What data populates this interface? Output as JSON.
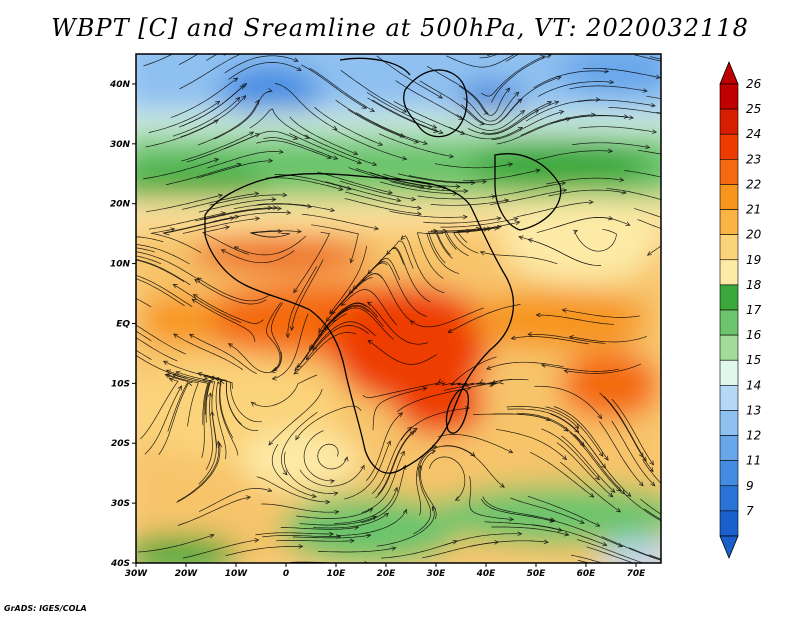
{
  "title": "WBPT [C] and Sreamline at 500hPa, VT: 2020032118",
  "credit": "GrADS: IGES/COLA",
  "map": {
    "lon_range": [
      -30,
      75
    ],
    "lat_range": [
      -40,
      45
    ],
    "x_ticks": [
      {
        "value": -30,
        "label": "30W"
      },
      {
        "value": -20,
        "label": "20W"
      },
      {
        "value": -10,
        "label": "10W"
      },
      {
        "value": 0,
        "label": "0"
      },
      {
        "value": 10,
        "label": "10E"
      },
      {
        "value": 20,
        "label": "20E"
      },
      {
        "value": 30,
        "label": "30E"
      },
      {
        "value": 40,
        "label": "40E"
      },
      {
        "value": 50,
        "label": "50E"
      },
      {
        "value": 60,
        "label": "60E"
      },
      {
        "value": 70,
        "label": "70E"
      }
    ],
    "y_ticks": [
      {
        "value": 40,
        "label": "40N"
      },
      {
        "value": 30,
        "label": "30N"
      },
      {
        "value": 20,
        "label": "20N"
      },
      {
        "value": 10,
        "label": "10N"
      },
      {
        "value": 0,
        "label": "EQ"
      },
      {
        "value": -10,
        "label": "10S"
      },
      {
        "value": -20,
        "label": "20S"
      },
      {
        "value": -30,
        "label": "30S"
      },
      {
        "value": -40,
        "label": "40S"
      }
    ]
  },
  "colorbar": {
    "levels": [
      "26",
      "25",
      "24",
      "23",
      "22",
      "21",
      "20",
      "19",
      "18",
      "17",
      "16",
      "15",
      "14",
      "13",
      "12",
      "11",
      "9",
      "7"
    ],
    "colors": [
      "#c00000",
      "#d81e00",
      "#ee3c00",
      "#f46a10",
      "#f7951c",
      "#f9b445",
      "#fbd37a",
      "#fdeaa6",
      "#3aa83a",
      "#6cc46c",
      "#a2dc9a",
      "#e0f7ee",
      "#b4d8f6",
      "#8ec0f0",
      "#68a6ea",
      "#448ce2",
      "#2a74d8",
      "#1a60cc"
    ]
  },
  "chart_data": {
    "type": "heatmap",
    "title": "WBPT [C] and Sreamline at 500hPa, VT: 2020032118",
    "x_range": [
      -30,
      75
    ],
    "y_range": [
      -40,
      45
    ],
    "field_regions": [
      {
        "region": "north of 30N",
        "approx_wbpt_c": 12
      },
      {
        "region": "20N to 30N",
        "approx_wbpt_c": 17
      },
      {
        "region": "10N to 20N",
        "approx_wbpt_c": 20
      },
      {
        "region": "equator to 15S, central Africa",
        "approx_wbpt_c": 23
      },
      {
        "region": "southern Atlantic 10S-30S",
        "approx_wbpt_c": 20
      },
      {
        "region": "south of 30S",
        "approx_wbpt_c": 17
      }
    ]
  }
}
